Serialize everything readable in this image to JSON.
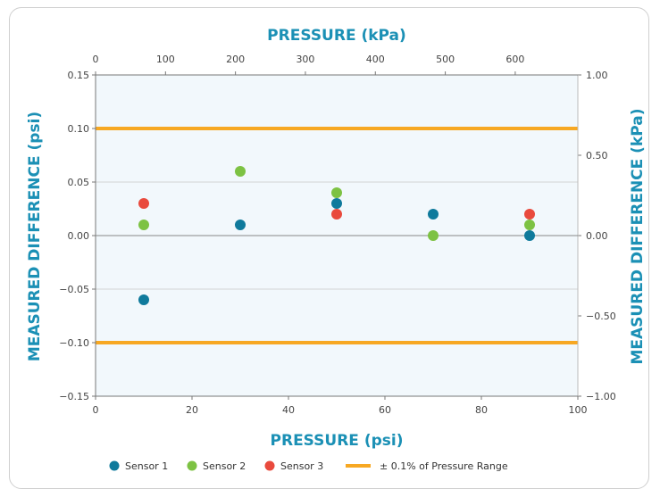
{
  "chart_data": {
    "type": "scatter",
    "title": "",
    "xlabel": "PRESSURE (psi)",
    "ylabel": "MEASURED DIFFERENCE (psi)",
    "x2label": "PRESSURE (kPa)",
    "y2label": "MEASURED DIFFERENCE (kPa)",
    "xlim": [
      0,
      100
    ],
    "ylim": [
      -0.15,
      0.15
    ],
    "x2lim": [
      0,
      689.5
    ],
    "y2lim": [
      -1.0,
      1.0
    ],
    "x_ticks": [
      "0",
      "20",
      "40",
      "60",
      "80",
      "100"
    ],
    "y_ticks": [
      "0.15",
      "0.10",
      "0.05",
      "0.00",
      "−0.05",
      "−0.10",
      "−0.15"
    ],
    "x2_ticks": [
      "0",
      "100",
      "200",
      "300",
      "400",
      "500",
      "600"
    ],
    "y2_ticks": [
      "1.00",
      "0.50",
      "0.00",
      "−0.50",
      "−1.00"
    ],
    "grid": true,
    "legend": "bottom",
    "series": [
      {
        "name": "Sensor 1",
        "color": "#0f7a9c",
        "x": [
          10,
          30,
          50,
          70,
          90
        ],
        "y": [
          -0.06,
          0.01,
          0.03,
          0.02,
          0.0
        ]
      },
      {
        "name": "Sensor 2",
        "color": "#7dc243",
        "x": [
          10,
          30,
          50,
          70,
          90
        ],
        "y": [
          0.01,
          0.06,
          0.04,
          0.0,
          0.01
        ]
      },
      {
        "name": "Sensor 3",
        "color": "#e94a3d",
        "x": [
          10,
          50,
          90
        ],
        "y": [
          0.03,
          0.02,
          0.02
        ]
      }
    ],
    "reference_lines": {
      "name": "± 0.1% of Pressure Range",
      "color": "#f7a823",
      "values": [
        0.1,
        -0.1
      ]
    }
  }
}
